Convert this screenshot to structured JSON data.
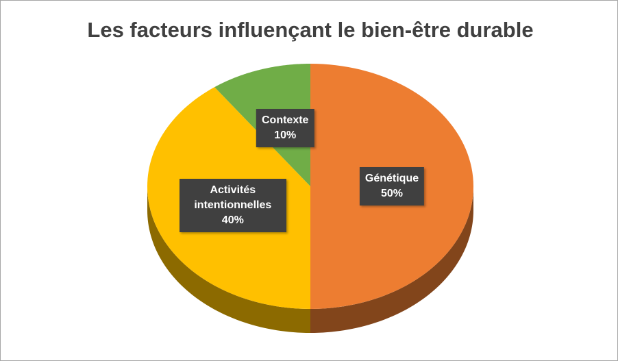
{
  "chart_data": {
    "type": "pie",
    "title": "Les facteurs influençant le bien-être durable",
    "categories": [
      "Génétique",
      "Activités intentionnelles",
      "Contexte"
    ],
    "values": [
      50,
      40,
      10
    ],
    "value_labels": [
      "50%",
      "40%",
      "10%"
    ],
    "colors": [
      "#ED7D31",
      "#FFC000",
      "#70AD47"
    ]
  }
}
